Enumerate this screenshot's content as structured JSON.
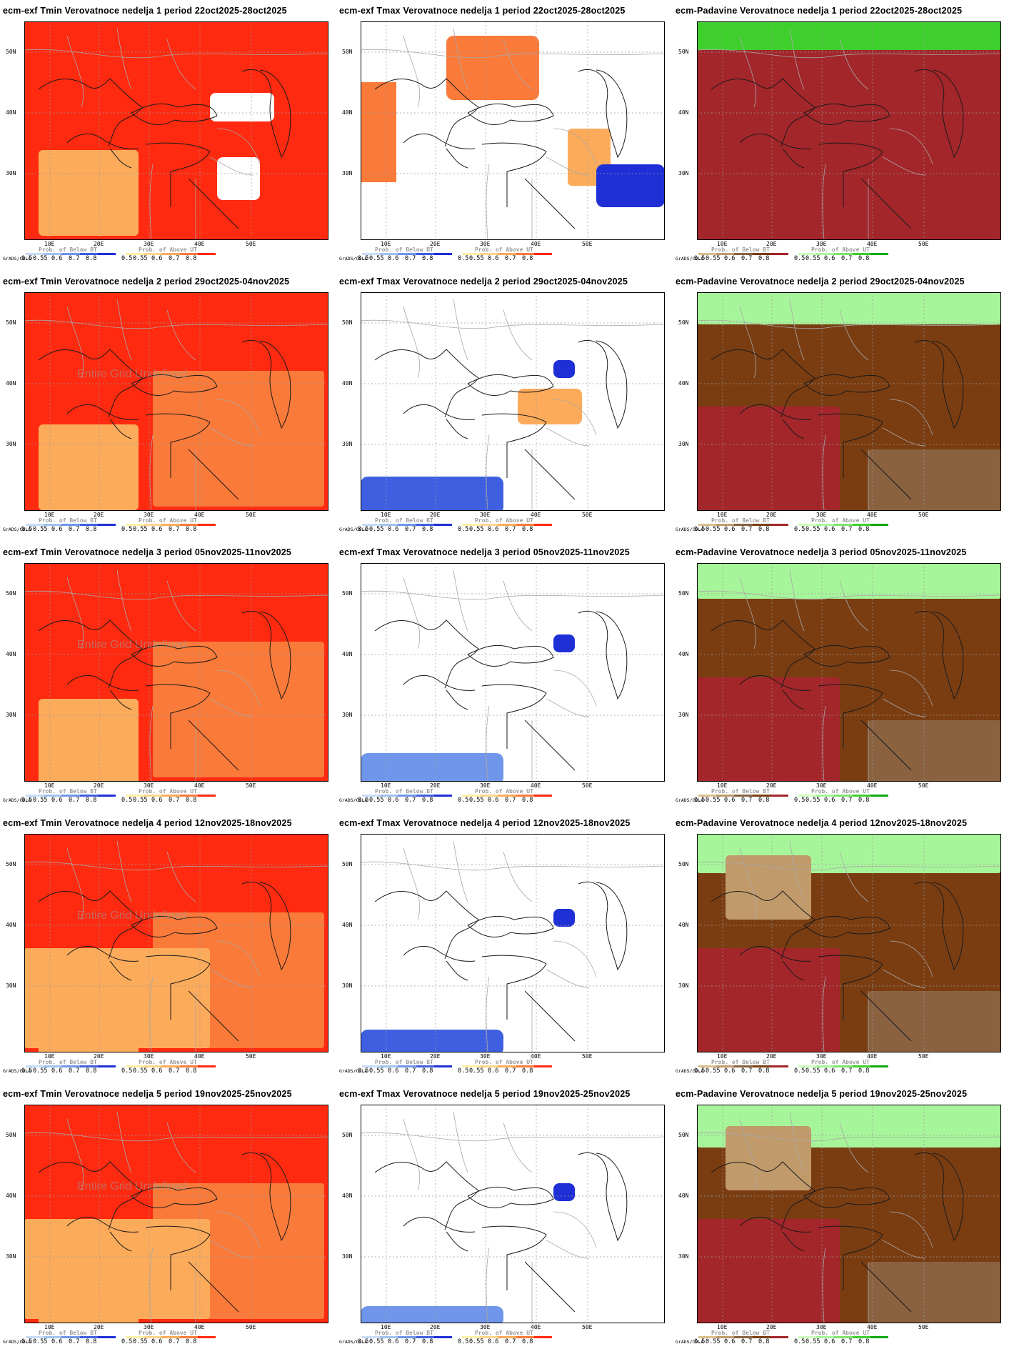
{
  "grads_label": "GrADS/COLA",
  "undefined_note": "Entire Grid Undefined",
  "lat_labels": [
    "50N",
    "40N",
    "30N"
  ],
  "lon_labels": [
    "10E",
    "20E",
    "30E",
    "40E",
    "50E"
  ],
  "legends": {
    "below": {
      "title": "Prob. of Below BT",
      "ticks": [
        "0.5",
        "0.55",
        "0.6",
        "0.7",
        "0.8"
      ],
      "colors": [
        "#c7dcf7",
        "#9fc2f0",
        "#6f96ea",
        "#3d5fe0",
        "#1f2fd6"
      ]
    },
    "above": {
      "title": "Prob. of Above UT",
      "ticks": [
        "0.5",
        "0.55",
        "0.6",
        "0.7",
        "0.8"
      ],
      "colors": [
        "#fff0a6",
        "#fdd58a",
        "#fcab5b",
        "#fa7a3a",
        "#ff2a10"
      ]
    },
    "dry": {
      "title": "Prob. of Below BT",
      "ticks": [
        "0.5",
        "0.55",
        "0.6",
        "0.7",
        "0.8"
      ],
      "colors": [
        "#d9bf8c",
        "#c19a6b",
        "#8a6240",
        "#7a3d12",
        "#a3262a"
      ]
    },
    "wet": {
      "title": "Prob. of Above UT",
      "ticks": [
        "0.5",
        "0.55",
        "0.6",
        "0.7",
        "0.8"
      ],
      "colors": [
        "#ccffbb",
        "#a7f59a",
        "#7fe36c",
        "#3fcf2d",
        "#10a810"
      ]
    }
  },
  "rows": [
    {
      "week": 1,
      "panels": [
        {
          "title": "ecm-exf Tmin Verovatnoce nedelja 1 period 22oct2025-28oct2025",
          "type": "tmin",
          "base": "#ff2a10",
          "undefined": false
        },
        {
          "title": "ecm-exf Tmax Verovatnoce nedelja 1 period 22oct2025-28oct2025",
          "type": "tmax",
          "base": "#ffffff",
          "undefined": false
        },
        {
          "title": "ecm-Padavine Verovatnoce nedelja 1 period 22oct2025-28oct2025",
          "type": "prec",
          "base": "#a3262a",
          "undefined": false
        }
      ]
    },
    {
      "week": 2,
      "panels": [
        {
          "title": "ecm-exf Tmin Verovatnoce nedelja 2 period 29oct2025-04nov2025",
          "type": "tmin",
          "base": "#ff2a10",
          "undefined": true
        },
        {
          "title": "ecm-exf Tmax Verovatnoce nedelja 2 period 29oct2025-04nov2025",
          "type": "tmax",
          "base": "#ffffff",
          "undefined": false
        },
        {
          "title": "ecm-Padavine Verovatnoce nedelja 2 period 29oct2025-04nov2025",
          "type": "prec",
          "base": "#7a3d12",
          "undefined": false
        }
      ]
    },
    {
      "week": 3,
      "panels": [
        {
          "title": "ecm-exf Tmin Verovatnoce nedelja 3 period 05nov2025-11nov2025",
          "type": "tmin",
          "base": "#ff2a10",
          "undefined": true
        },
        {
          "title": "ecm-exf Tmax Verovatnoce nedelja 3 period 05nov2025-11nov2025",
          "type": "tmax",
          "base": "#ffffff",
          "undefined": false
        },
        {
          "title": "ecm-Padavine Verovatnoce nedelja 3 period 05nov2025-11nov2025",
          "type": "prec",
          "base": "#7a3d12",
          "undefined": false
        }
      ]
    },
    {
      "week": 4,
      "panels": [
        {
          "title": "ecm-exf Tmin Verovatnoce nedelja 4 period 12nov2025-18nov2025",
          "type": "tmin",
          "base": "#ff2a10",
          "undefined": true
        },
        {
          "title": "ecm-exf Tmax Verovatnoce nedelja 4 period 12nov2025-18nov2025",
          "type": "tmax",
          "base": "#ffffff",
          "undefined": false
        },
        {
          "title": "ecm-Padavine Verovatnoce nedelja 4 period 12nov2025-18nov2025",
          "type": "prec",
          "base": "#7a3d12",
          "undefined": false
        }
      ]
    },
    {
      "week": 5,
      "panels": [
        {
          "title": "ecm-exf Tmin Verovatnoce nedelja 5 period 19nov2025-25nov2025",
          "type": "tmin",
          "base": "#ff2a10",
          "undefined": true
        },
        {
          "title": "ecm-exf Tmax Verovatnoce nedelja 5 period 19nov2025-25nov2025",
          "type": "tmax",
          "base": "#ffffff",
          "undefined": false
        },
        {
          "title": "ecm-Padavine Verovatnoce nedelja 5 period 19nov2025-25nov2025",
          "type": "prec",
          "base": "#7a3d12",
          "undefined": false
        }
      ]
    }
  ]
}
